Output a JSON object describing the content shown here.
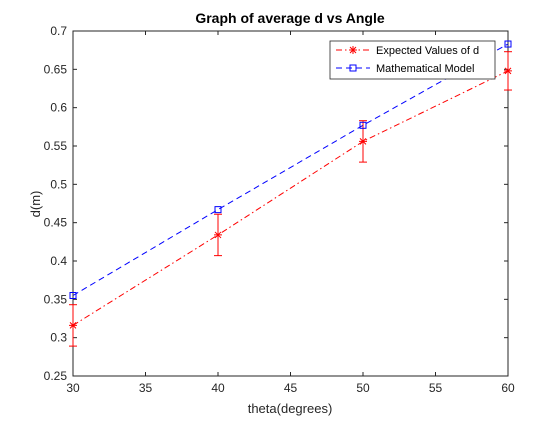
{
  "chart_data": {
    "type": "line",
    "title": "Graph of average d vs Angle",
    "xlabel": "theta(degrees)",
    "ylabel": "d(m)",
    "xlim": [
      30,
      60
    ],
    "ylim": [
      0.25,
      0.7
    ],
    "xticks": [
      "30",
      "35",
      "40",
      "45",
      "50",
      "55",
      "60"
    ],
    "yticks": [
      "0.25",
      "0.3",
      "0.35",
      "0.4",
      "0.45",
      "0.5",
      "0.55",
      "0.6",
      "0.65",
      "0.7"
    ],
    "grid": false,
    "legend_position": "top-right",
    "x": [
      30,
      40,
      50,
      60
    ],
    "series": [
      {
        "name": "Expected Values of d",
        "color": "#ff0000",
        "marker": "star",
        "line_style": "dash-dot",
        "values": [
          0.316,
          0.434,
          0.556,
          0.648
        ],
        "error": [
          0.027,
          0.027,
          0.027,
          0.025
        ]
      },
      {
        "name": "Mathematical Model",
        "color": "#0000ff",
        "marker": "square",
        "line_style": "dashed",
        "values": [
          0.355,
          0.467,
          0.577,
          0.683
        ]
      }
    ]
  }
}
